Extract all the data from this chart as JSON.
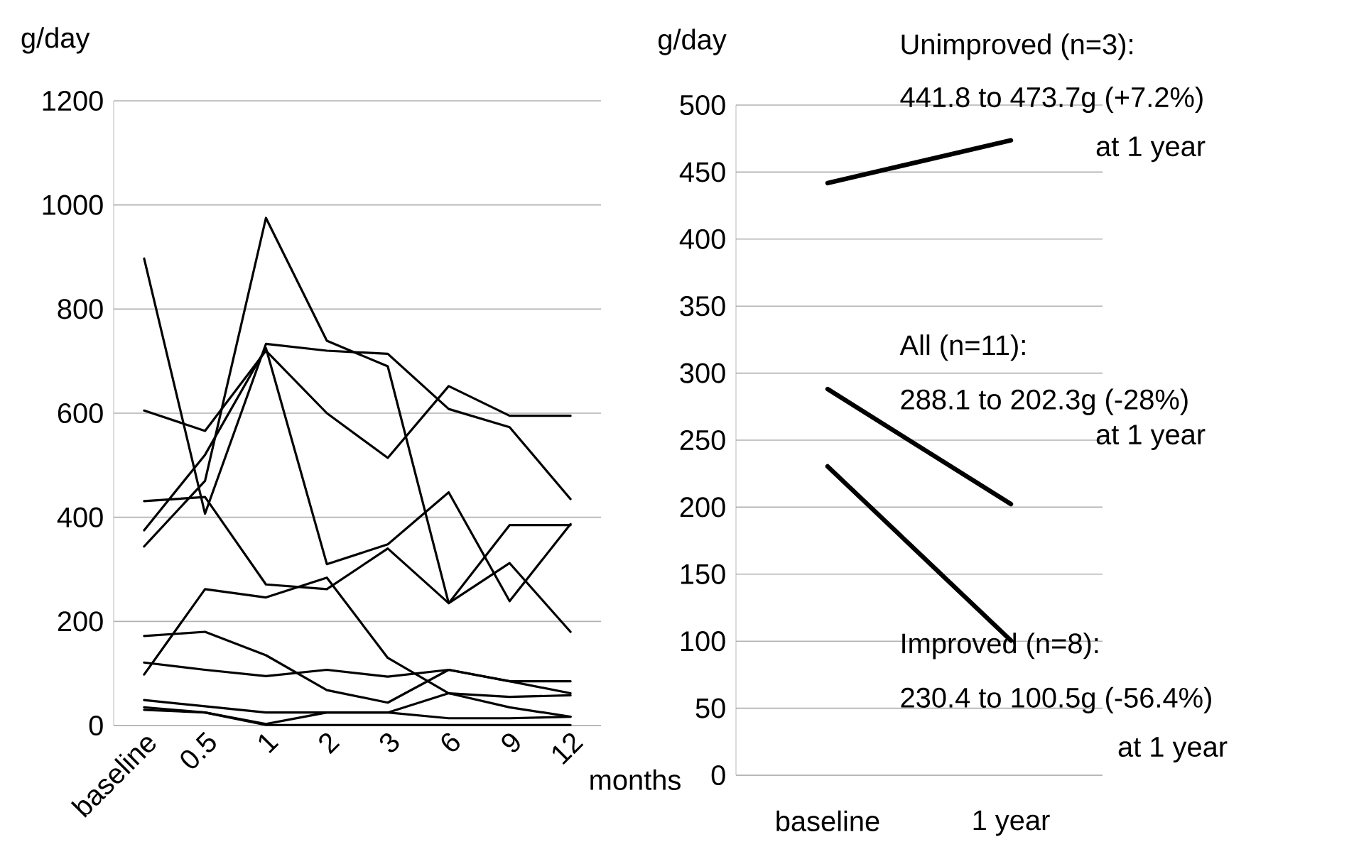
{
  "chart_data": [
    {
      "type": "line",
      "ylabel": "g/day",
      "xlabel": "months",
      "grid": "y",
      "categories": [
        "baseline",
        "0.5",
        "1",
        "2",
        "3",
        "6",
        "9",
        "12"
      ],
      "ylim": [
        0,
        1200
      ],
      "yticks": [
        0,
        200,
        400,
        600,
        800,
        1000,
        1200
      ],
      "series": [
        {
          "color": "#000000",
          "values": [
            897,
            407,
            733,
            720,
            714,
            608,
            573,
            435
          ]
        },
        {
          "color": "#000000",
          "values": [
            605,
            566,
            720,
            600,
            514,
            652,
            595,
            595
          ]
        },
        {
          "color": "#000000",
          "values": [
            344,
            470,
            975,
            739,
            690,
            235,
            385,
            385
          ]
        },
        {
          "color": "#000000",
          "values": [
            375,
            520,
            725,
            310,
            348,
            448,
            239,
            387
          ]
        },
        {
          "color": "#000000",
          "values": [
            431,
            439,
            271,
            262,
            340,
            235,
            312,
            180
          ]
        },
        {
          "color": "#000000",
          "values": [
            98,
            262,
            246,
            284,
            130,
            62,
            35,
            17
          ]
        },
        {
          "color": "#000000",
          "values": [
            172,
            180,
            135,
            68,
            44,
            107,
            85,
            85
          ]
        },
        {
          "color": "#000000",
          "values": [
            121,
            107,
            95,
            107,
            94,
            107,
            85,
            62
          ]
        },
        {
          "color": "#000000",
          "values": [
            49,
            37,
            25,
            25,
            25,
            62,
            55,
            58
          ]
        },
        {
          "color": "#000000",
          "values": [
            35,
            25,
            3,
            25,
            25,
            14,
            14,
            17
          ]
        },
        {
          "color": "#000000",
          "values": [
            30,
            25,
            1,
            1,
            1,
            1,
            1,
            1
          ]
        }
      ]
    },
    {
      "type": "line",
      "ylabel": "g/day",
      "grid": "y",
      "categories": [
        "baseline",
        "1 year"
      ],
      "ylim": [
        0,
        500
      ],
      "yticks": [
        0,
        50,
        100,
        150,
        200,
        250,
        300,
        350,
        400,
        450,
        500
      ],
      "series": [
        {
          "color": "#000000",
          "values": [
            441.8,
            473.7
          ]
        },
        {
          "color": "#000000",
          "values": [
            288.1,
            202.3
          ]
        },
        {
          "color": "#000000",
          "values": [
            230.4,
            100.5
          ]
        }
      ],
      "annotations": [
        "Unimproved (n=3):",
        "441.8 to 473.7g (+7.2%)",
        "at 1 year",
        "All (n=11):",
        "288.1 to 202.3g (-28%)",
        "at 1 year",
        "Improved (n=8):",
        "230.4 to 100.5g (-56.4%)",
        "at 1 year"
      ]
    }
  ]
}
